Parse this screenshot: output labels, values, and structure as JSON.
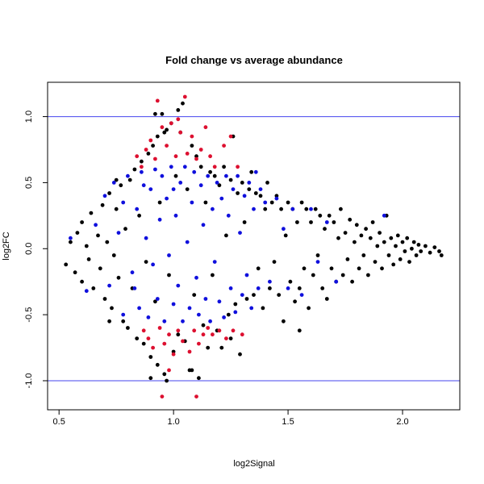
{
  "chart_data": {
    "type": "scatter",
    "title": "Fold change vs average abundance",
    "xlabel": "log2Signal",
    "ylabel": "log2FC",
    "xlim": [
      0.45,
      2.25
    ],
    "ylim": [
      -1.22,
      1.26
    ],
    "x_ticks": [
      0.5,
      1.0,
      1.5,
      2.0
    ],
    "x_tick_labels": [
      "0.5",
      "1.0",
      "1.5",
      "2.0"
    ],
    "y_ticks": [
      -1.0,
      -0.5,
      0.0,
      0.5,
      1.0
    ],
    "y_tick_labels": [
      "-1.0",
      "-0.5",
      "0.0",
      "0.5",
      "1.0"
    ],
    "grid": false,
    "reference_lines": [
      {
        "axis": "y",
        "value": 1.0,
        "color": "#4444ee"
      },
      {
        "axis": "y",
        "value": -1.0,
        "color": "#4444ee"
      }
    ],
    "series": [
      {
        "color": "#000000",
        "points": [
          [
            0.53,
            -0.12
          ],
          [
            0.55,
            0.05
          ],
          [
            0.57,
            -0.18
          ],
          [
            0.58,
            0.12
          ],
          [
            0.6,
            -0.25
          ],
          [
            0.6,
            0.2
          ],
          [
            0.62,
            0.02
          ],
          [
            0.63,
            -0.08
          ],
          [
            0.64,
            0.27
          ],
          [
            0.65,
            -0.3
          ],
          [
            0.67,
            0.1
          ],
          [
            0.68,
            -0.15
          ],
          [
            0.69,
            0.33
          ],
          [
            0.7,
            -0.38
          ],
          [
            0.71,
            0.05
          ],
          [
            0.72,
            0.42
          ],
          [
            0.73,
            -0.45
          ],
          [
            0.74,
            -0.05
          ],
          [
            0.75,
            0.3
          ],
          [
            0.76,
            -0.22
          ],
          [
            0.77,
            0.48
          ],
          [
            0.78,
            -0.55
          ],
          [
            0.79,
            0.15
          ],
          [
            0.8,
            -0.6
          ],
          [
            0.81,
            0.52
          ],
          [
            0.82,
            -0.3
          ],
          [
            0.83,
            0.6
          ],
          [
            0.84,
            -0.68
          ],
          [
            0.85,
            0.25
          ],
          [
            0.86,
            0.66
          ],
          [
            0.87,
            -0.72
          ],
          [
            0.88,
            -0.1
          ],
          [
            0.89,
            0.72
          ],
          [
            0.9,
            -0.82
          ],
          [
            0.91,
            0.78
          ],
          [
            0.92,
            -0.4
          ],
          [
            0.93,
            0.85
          ],
          [
            0.93,
            -0.88
          ],
          [
            0.94,
            0.35
          ],
          [
            0.95,
            1.02
          ],
          [
            0.96,
            -0.95
          ],
          [
            0.97,
            0.9
          ],
          [
            0.98,
            -0.2
          ],
          [
            0.99,
            0.95
          ],
          [
            1.0,
            -0.78
          ],
          [
            1.01,
            0.55
          ],
          [
            1.02,
            -0.65
          ],
          [
            1.03,
            0.88
          ],
          [
            1.04,
            1.1
          ],
          [
            1.05,
            -0.7
          ],
          [
            1.06,
            0.45
          ],
          [
            1.07,
            -0.92
          ],
          [
            1.08,
            0.78
          ],
          [
            1.09,
            -0.35
          ],
          [
            1.1,
            0.7
          ],
          [
            1.11,
            -0.98
          ],
          [
            1.12,
            0.62
          ],
          [
            1.13,
            -0.58
          ],
          [
            1.14,
            0.35
          ],
          [
            1.15,
            -0.75
          ],
          [
            1.16,
            0.58
          ],
          [
            1.17,
            -0.2
          ],
          [
            1.18,
            0.55
          ],
          [
            1.19,
            -0.62
          ],
          [
            1.2,
            0.48
          ],
          [
            1.21,
            -0.75
          ],
          [
            1.22,
            0.62
          ],
          [
            1.23,
            0.1
          ],
          [
            1.24,
            -0.5
          ],
          [
            1.25,
            0.52
          ],
          [
            1.26,
            0.85
          ],
          [
            1.27,
            -0.42
          ],
          [
            1.28,
            0.42
          ],
          [
            1.29,
            -0.8
          ],
          [
            1.3,
            0.5
          ],
          [
            1.31,
            0.2
          ],
          [
            1.32,
            -0.38
          ],
          [
            1.33,
            0.45
          ],
          [
            1.34,
            0.58
          ],
          [
            1.35,
            -0.35
          ],
          [
            1.36,
            0.42
          ],
          [
            1.37,
            -0.15
          ],
          [
            1.38,
            0.4
          ],
          [
            1.39,
            -0.45
          ],
          [
            1.4,
            0.3
          ],
          [
            1.41,
            0.5
          ],
          [
            1.42,
            -0.3
          ],
          [
            1.43,
            0.35
          ],
          [
            1.44,
            -0.1
          ],
          [
            1.45,
            0.4
          ],
          [
            1.46,
            -0.35
          ],
          [
            1.47,
            0.3
          ],
          [
            1.48,
            -0.55
          ],
          [
            1.49,
            0.1
          ],
          [
            1.5,
            0.35
          ],
          [
            1.51,
            -0.25
          ],
          [
            1.52,
            0.3
          ],
          [
            1.53,
            -0.4
          ],
          [
            1.54,
            0.2
          ],
          [
            1.55,
            -0.3
          ],
          [
            1.56,
            0.35
          ],
          [
            1.57,
            -0.15
          ],
          [
            1.58,
            0.3
          ],
          [
            1.59,
            -0.45
          ],
          [
            1.6,
            0.2
          ],
          [
            1.61,
            -0.2
          ],
          [
            1.62,
            0.3
          ],
          [
            1.63,
            -0.05
          ],
          [
            1.64,
            0.25
          ],
          [
            1.65,
            -0.3
          ],
          [
            1.66,
            0.15
          ],
          [
            1.67,
            -0.38
          ],
          [
            1.68,
            0.25
          ],
          [
            1.69,
            -0.15
          ],
          [
            1.7,
            0.2
          ],
          [
            1.71,
            -0.25
          ],
          [
            1.72,
            0.08
          ],
          [
            1.73,
            0.3
          ],
          [
            1.74,
            -0.2
          ],
          [
            1.75,
            0.12
          ],
          [
            1.76,
            -0.08
          ],
          [
            1.77,
            0.22
          ],
          [
            1.78,
            -0.25
          ],
          [
            1.79,
            0.05
          ],
          [
            1.8,
            0.18
          ],
          [
            1.81,
            -0.15
          ],
          [
            1.82,
            0.1
          ],
          [
            1.83,
            -0.05
          ],
          [
            1.84,
            0.15
          ],
          [
            1.85,
            -0.2
          ],
          [
            1.86,
            0.08
          ],
          [
            1.87,
            0.2
          ],
          [
            1.88,
            -0.1
          ],
          [
            1.89,
            0.02
          ],
          [
            1.9,
            0.12
          ],
          [
            1.91,
            -0.15
          ],
          [
            1.92,
            0.05
          ],
          [
            1.93,
            0.25
          ],
          [
            1.94,
            -0.05
          ],
          [
            1.95,
            0.08
          ],
          [
            1.96,
            -0.12
          ],
          [
            1.97,
            0.02
          ],
          [
            1.98,
            0.1
          ],
          [
            1.99,
            -0.08
          ],
          [
            2.0,
            0.05
          ],
          [
            2.01,
            -0.02
          ],
          [
            2.02,
            0.08
          ],
          [
            2.03,
            -0.1
          ],
          [
            2.04,
            0.0
          ],
          [
            2.05,
            0.05
          ],
          [
            2.06,
            -0.05
          ],
          [
            2.07,
            0.03
          ],
          [
            2.08,
            -0.02
          ],
          [
            2.1,
            0.02
          ],
          [
            2.12,
            -0.03
          ],
          [
            2.14,
            0.01
          ],
          [
            2.16,
            -0.02
          ],
          [
            2.17,
            -0.05
          ],
          [
            1.55,
            -0.62
          ],
          [
            1.25,
            -0.68
          ],
          [
            0.97,
            -1.0
          ],
          [
            0.9,
            -0.98
          ],
          [
            1.02,
            1.05
          ],
          [
            0.92,
            1.02
          ],
          [
            1.08,
            -0.92
          ],
          [
            0.96,
            0.88
          ],
          [
            0.75,
            0.52
          ],
          [
            0.72,
            -0.55
          ]
        ]
      },
      {
        "color": "#1010dd",
        "points": [
          [
            0.55,
            0.08
          ],
          [
            0.62,
            -0.32
          ],
          [
            0.66,
            0.18
          ],
          [
            0.7,
            0.4
          ],
          [
            0.72,
            -0.28
          ],
          [
            0.74,
            0.5
          ],
          [
            0.76,
            0.12
          ],
          [
            0.78,
            -0.5
          ],
          [
            0.8,
            0.55
          ],
          [
            0.82,
            -0.18
          ],
          [
            0.84,
            0.3
          ],
          [
            0.85,
            -0.45
          ],
          [
            0.86,
            0.58
          ],
          [
            0.88,
            0.08
          ],
          [
            0.89,
            -0.52
          ],
          [
            0.9,
            0.45
          ],
          [
            0.91,
            -0.12
          ],
          [
            0.92,
            0.6
          ],
          [
            0.93,
            -0.38
          ],
          [
            0.94,
            0.22
          ],
          [
            0.95,
            0.55
          ],
          [
            0.96,
            -0.55
          ],
          [
            0.97,
            0.38
          ],
          [
            0.98,
            -0.05
          ],
          [
            0.99,
            0.62
          ],
          [
            1.0,
            -0.42
          ],
          [
            1.01,
            0.25
          ],
          [
            1.02,
            -0.28
          ],
          [
            1.03,
            0.5
          ],
          [
            1.04,
            -0.55
          ],
          [
            1.05,
            0.62
          ],
          [
            1.06,
            0.05
          ],
          [
            1.07,
            -0.45
          ],
          [
            1.08,
            0.35
          ],
          [
            1.09,
            0.58
          ],
          [
            1.1,
            -0.22
          ],
          [
            1.11,
            -0.5
          ],
          [
            1.12,
            0.48
          ],
          [
            1.13,
            0.18
          ],
          [
            1.14,
            -0.38
          ],
          [
            1.15,
            0.55
          ],
          [
            1.16,
            -0.55
          ],
          [
            1.17,
            0.3
          ],
          [
            1.18,
            -0.1
          ],
          [
            1.19,
            0.5
          ],
          [
            1.2,
            -0.4
          ],
          [
            1.21,
            0.38
          ],
          [
            1.22,
            -0.52
          ],
          [
            1.23,
            0.55
          ],
          [
            1.24,
            0.25
          ],
          [
            1.25,
            -0.3
          ],
          [
            1.26,
            0.45
          ],
          [
            1.27,
            -0.48
          ],
          [
            1.28,
            0.55
          ],
          [
            1.29,
            0.12
          ],
          [
            1.3,
            -0.35
          ],
          [
            1.31,
            0.4
          ],
          [
            1.32,
            -0.2
          ],
          [
            1.33,
            0.5
          ],
          [
            1.34,
            -0.45
          ],
          [
            1.35,
            0.3
          ],
          [
            1.36,
            0.58
          ],
          [
            1.37,
            -0.3
          ],
          [
            1.38,
            0.45
          ],
          [
            1.4,
            0.35
          ],
          [
            1.42,
            -0.25
          ],
          [
            1.45,
            0.38
          ],
          [
            1.48,
            0.15
          ],
          [
            1.5,
            -0.3
          ],
          [
            1.52,
            0.3
          ],
          [
            1.56,
            -0.35
          ],
          [
            1.6,
            0.3
          ],
          [
            1.63,
            -0.1
          ],
          [
            1.67,
            0.2
          ],
          [
            1.71,
            -0.25
          ],
          [
            1.92,
            0.25
          ],
          [
            0.78,
            0.35
          ],
          [
            0.83,
            -0.3
          ],
          [
            0.87,
            0.48
          ],
          [
            1.0,
            0.45
          ]
        ]
      },
      {
        "color": "#dd1030",
        "points": [
          [
            0.84,
            0.7
          ],
          [
            0.86,
            0.62
          ],
          [
            0.87,
            -0.62
          ],
          [
            0.88,
            0.75
          ],
          [
            0.89,
            -0.68
          ],
          [
            0.9,
            0.82
          ],
          [
            0.91,
            -0.75
          ],
          [
            0.92,
            0.68
          ],
          [
            0.93,
            1.12
          ],
          [
            0.94,
            -0.6
          ],
          [
            0.95,
            0.92
          ],
          [
            0.96,
            -0.72
          ],
          [
            0.97,
            0.78
          ],
          [
            0.98,
            -0.65
          ],
          [
            0.99,
            0.95
          ],
          [
            1.0,
            -0.8
          ],
          [
            1.01,
            0.7
          ],
          [
            1.02,
            -0.62
          ],
          [
            1.03,
            0.88
          ],
          [
            1.04,
            -0.7
          ],
          [
            1.05,
            1.15
          ],
          [
            1.06,
            0.72
          ],
          [
            1.07,
            -0.78
          ],
          [
            1.08,
            0.85
          ],
          [
            1.09,
            -0.62
          ],
          [
            1.1,
            0.68
          ],
          [
            1.11,
            -0.72
          ],
          [
            1.12,
            0.75
          ],
          [
            1.13,
            -0.65
          ],
          [
            1.14,
            0.92
          ],
          [
            1.15,
            -0.6
          ],
          [
            1.16,
            0.7
          ],
          [
            1.17,
            -0.65
          ],
          [
            1.18,
            0.62
          ],
          [
            1.2,
            -0.62
          ],
          [
            1.22,
            0.78
          ],
          [
            1.23,
            -0.68
          ],
          [
            1.25,
            0.85
          ],
          [
            1.26,
            -0.62
          ],
          [
            1.28,
            0.62
          ],
          [
            1.3,
            -0.65
          ],
          [
            0.95,
            -1.12
          ],
          [
            1.1,
            -1.12
          ],
          [
            0.98,
            -0.92
          ],
          [
            1.02,
            0.98
          ]
        ]
      }
    ]
  }
}
